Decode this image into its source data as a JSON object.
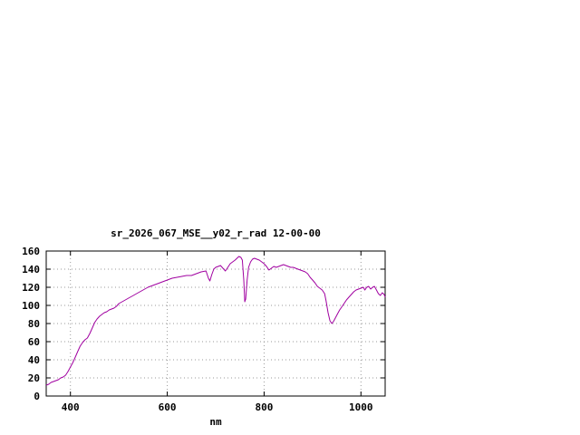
{
  "page": {
    "background": "#ffffff"
  },
  "chart_data": {
    "type": "line",
    "title": "sr_2026_067_MSE__y02_r_rad 12-00-00",
    "xlabel": "nm",
    "ylabel": "",
    "xlim": [
      350,
      1050
    ],
    "ylim": [
      0,
      160
    ],
    "xticks": [
      400,
      600,
      800,
      1000
    ],
    "yticks": [
      0,
      20,
      40,
      60,
      80,
      100,
      120,
      140,
      160
    ],
    "grid": true,
    "grid_style": "dotted",
    "legend": "none",
    "line_color": "#a000a0",
    "frame_color": "#000000",
    "grid_color": "#9a9a9a",
    "series": [
      {
        "points": [
          [
            350,
            12
          ],
          [
            355,
            13
          ],
          [
            360,
            15
          ],
          [
            365,
            16
          ],
          [
            370,
            17
          ],
          [
            375,
            18
          ],
          [
            380,
            20
          ],
          [
            385,
            21
          ],
          [
            390,
            23
          ],
          [
            395,
            27
          ],
          [
            400,
            32
          ],
          [
            405,
            37
          ],
          [
            410,
            43
          ],
          [
            415,
            49
          ],
          [
            420,
            55
          ],
          [
            425,
            59
          ],
          [
            430,
            62
          ],
          [
            435,
            64
          ],
          [
            440,
            69
          ],
          [
            445,
            75
          ],
          [
            450,
            81
          ],
          [
            455,
            85
          ],
          [
            460,
            88
          ],
          [
            465,
            90
          ],
          [
            470,
            92
          ],
          [
            475,
            93
          ],
          [
            480,
            95
          ],
          [
            485,
            96
          ],
          [
            490,
            97
          ],
          [
            495,
            99
          ],
          [
            500,
            102
          ],
          [
            510,
            105
          ],
          [
            520,
            108
          ],
          [
            530,
            111
          ],
          [
            540,
            114
          ],
          [
            550,
            117
          ],
          [
            560,
            120
          ],
          [
            570,
            122
          ],
          [
            580,
            124
          ],
          [
            590,
            126
          ],
          [
            600,
            128
          ],
          [
            610,
            130
          ],
          [
            620,
            131
          ],
          [
            630,
            132
          ],
          [
            640,
            133
          ],
          [
            650,
            133
          ],
          [
            660,
            135
          ],
          [
            670,
            137
          ],
          [
            680,
            138
          ],
          [
            685,
            130
          ],
          [
            688,
            127
          ],
          [
            692,
            134
          ],
          [
            696,
            140
          ],
          [
            700,
            142
          ],
          [
            705,
            143
          ],
          [
            710,
            144
          ],
          [
            715,
            141
          ],
          [
            720,
            138
          ],
          [
            725,
            142
          ],
          [
            730,
            146
          ],
          [
            735,
            148
          ],
          [
            740,
            150
          ],
          [
            744,
            152
          ],
          [
            748,
            154
          ],
          [
            752,
            153
          ],
          [
            755,
            150
          ],
          [
            758,
            128
          ],
          [
            760,
            104
          ],
          [
            762,
            107
          ],
          [
            765,
            128
          ],
          [
            768,
            142
          ],
          [
            772,
            148
          ],
          [
            776,
            151
          ],
          [
            780,
            152
          ],
          [
            785,
            151
          ],
          [
            790,
            150
          ],
          [
            795,
            148
          ],
          [
            800,
            146
          ],
          [
            805,
            143
          ],
          [
            810,
            139
          ],
          [
            815,
            141
          ],
          [
            820,
            143
          ],
          [
            825,
            142
          ],
          [
            830,
            143
          ],
          [
            835,
            144
          ],
          [
            840,
            145
          ],
          [
            845,
            144
          ],
          [
            850,
            143
          ],
          [
            855,
            142
          ],
          [
            860,
            142
          ],
          [
            865,
            141
          ],
          [
            870,
            140
          ],
          [
            875,
            139
          ],
          [
            880,
            138
          ],
          [
            885,
            137
          ],
          [
            890,
            135
          ],
          [
            895,
            131
          ],
          [
            900,
            128
          ],
          [
            905,
            125
          ],
          [
            910,
            121
          ],
          [
            915,
            119
          ],
          [
            920,
            117
          ],
          [
            925,
            113
          ],
          [
            928,
            105
          ],
          [
            932,
            92
          ],
          [
            936,
            83
          ],
          [
            940,
            80
          ],
          [
            944,
            83
          ],
          [
            948,
            87
          ],
          [
            952,
            91
          ],
          [
            956,
            95
          ],
          [
            960,
            98
          ],
          [
            965,
            102
          ],
          [
            970,
            106
          ],
          [
            975,
            109
          ],
          [
            980,
            112
          ],
          [
            985,
            115
          ],
          [
            990,
            117
          ],
          [
            995,
            118
          ],
          [
            1000,
            119
          ],
          [
            1005,
            120
          ],
          [
            1008,
            117
          ],
          [
            1012,
            120
          ],
          [
            1016,
            121
          ],
          [
            1020,
            118
          ],
          [
            1024,
            120
          ],
          [
            1028,
            121
          ],
          [
            1032,
            117
          ],
          [
            1036,
            113
          ],
          [
            1040,
            111
          ],
          [
            1044,
            114
          ],
          [
            1048,
            112
          ],
          [
            1050,
            109
          ]
        ]
      }
    ]
  }
}
